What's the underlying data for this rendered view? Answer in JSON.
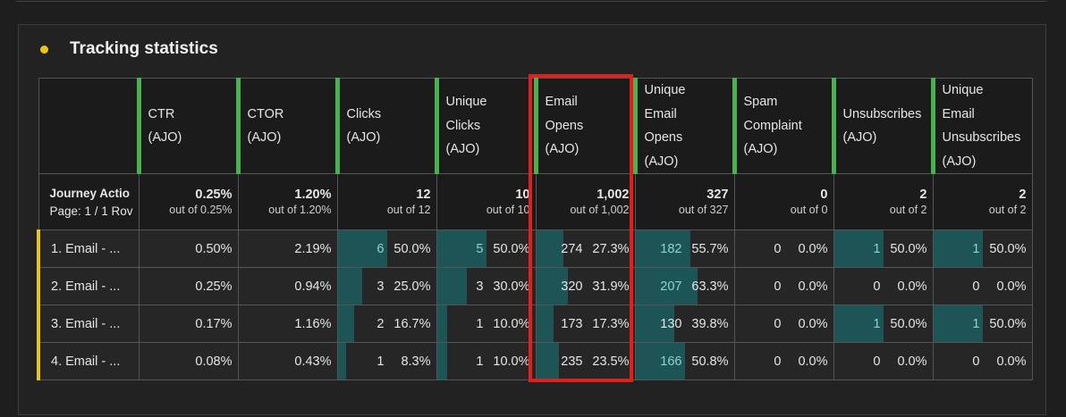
{
  "panel": {
    "title": "Tracking statistics"
  },
  "colors": {
    "accent_green": "#4caf50",
    "bar": "#1d5455",
    "row_marker": "#e6c619",
    "highlight": "#e0201c"
  },
  "columns": [
    {
      "label": [
        "CTR",
        "(AJO)"
      ],
      "total": "0.25%",
      "out_of": "out of 0.25%",
      "type": "text"
    },
    {
      "label": [
        "CTOR",
        "(AJO)"
      ],
      "total": "1.20%",
      "out_of": "out of 1.20%",
      "type": "text"
    },
    {
      "label": [
        "Clicks",
        "(AJO)"
      ],
      "total": "12",
      "out_of": "out of 12",
      "type": "bar"
    },
    {
      "label": [
        "Unique",
        "Clicks",
        "(AJO)"
      ],
      "total": "10",
      "out_of": "out of 10",
      "type": "bar"
    },
    {
      "label": [
        "Email",
        "Opens",
        "(AJO)"
      ],
      "total": "1,002",
      "out_of": "out of 1,002",
      "type": "bar"
    },
    {
      "label": [
        "Unique",
        "Email",
        "Opens",
        "(AJO)"
      ],
      "total": "327",
      "out_of": "out of 327",
      "type": "bar"
    },
    {
      "label": [
        "Spam",
        "Complaint",
        "(AJO)"
      ],
      "total": "0",
      "out_of": "out of 0",
      "type": "bar"
    },
    {
      "label": [
        "Unsubscribes",
        "(AJO)"
      ],
      "total": "2",
      "out_of": "out of 2",
      "type": "bar"
    },
    {
      "label": [
        "Unique",
        "Email",
        "Unsubscribes",
        "(AJO)"
      ],
      "total": "2",
      "out_of": "out of 2",
      "type": "bar"
    }
  ],
  "dimension": {
    "label": "Journey Actio",
    "paging": "Page: 1 / 1 Rov"
  },
  "rows": [
    {
      "label": "1.  Email - ...",
      "cells": [
        [
          "0.50%"
        ],
        [
          "2.19%"
        ],
        [
          "6",
          "50.0%",
          50.0
        ],
        [
          "5",
          "50.0%",
          50.0
        ],
        [
          "274",
          "27.3%",
          27.3
        ],
        [
          "182",
          "55.7%",
          55.7
        ],
        [
          "0",
          "0.0%",
          0
        ],
        [
          "1",
          "50.0%",
          50.0
        ],
        [
          "1",
          "50.0%",
          50.0
        ]
      ]
    },
    {
      "label": "2.  Email - ...",
      "cells": [
        [
          "0.25%"
        ],
        [
          "0.94%"
        ],
        [
          "3",
          "25.0%",
          25.0
        ],
        [
          "3",
          "30.0%",
          30.0
        ],
        [
          "320",
          "31.9%",
          31.9
        ],
        [
          "207",
          "63.3%",
          63.3
        ],
        [
          "0",
          "0.0%",
          0
        ],
        [
          "0",
          "0.0%",
          0
        ],
        [
          "0",
          "0.0%",
          0
        ]
      ]
    },
    {
      "label": "3.  Email - ...",
      "cells": [
        [
          "0.17%"
        ],
        [
          "1.16%"
        ],
        [
          "2",
          "16.7%",
          16.7
        ],
        [
          "1",
          "10.0%",
          10.0
        ],
        [
          "173",
          "17.3%",
          17.3
        ],
        [
          "130",
          "39.8%",
          39.8
        ],
        [
          "0",
          "0.0%",
          0
        ],
        [
          "1",
          "50.0%",
          50.0
        ],
        [
          "1",
          "50.0%",
          50.0
        ]
      ]
    },
    {
      "label": "4.  Email - ...",
      "cells": [
        [
          "0.08%"
        ],
        [
          "0.43%"
        ],
        [
          "1",
          "8.3%",
          8.3
        ],
        [
          "1",
          "10.0%",
          10.0
        ],
        [
          "235",
          "23.5%",
          23.5
        ],
        [
          "166",
          "50.8%",
          50.8
        ],
        [
          "0",
          "0.0%",
          0
        ],
        [
          "0",
          "0.0%",
          0
        ],
        [
          "0",
          "0.0%",
          0
        ]
      ]
    }
  ]
}
